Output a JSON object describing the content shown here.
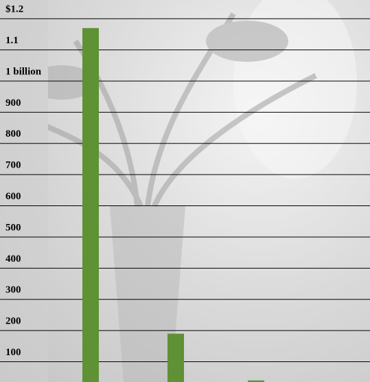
{
  "chart_data": {
    "type": "bar",
    "categories": [
      null,
      null,
      null
    ],
    "values": [
      1170,
      190,
      40
    ],
    "color": "#5f9135",
    "ylim": [
      35,
      1260
    ],
    "yticks": [
      100,
      200,
      300,
      400,
      500,
      600,
      700,
      800,
      900,
      {
        "value": 1000,
        "label": "1 billion"
      },
      {
        "value": 1100,
        "label": "1.1"
      },
      {
        "value": 1200,
        "label": "$1.2"
      }
    ],
    "grid": true
  }
}
